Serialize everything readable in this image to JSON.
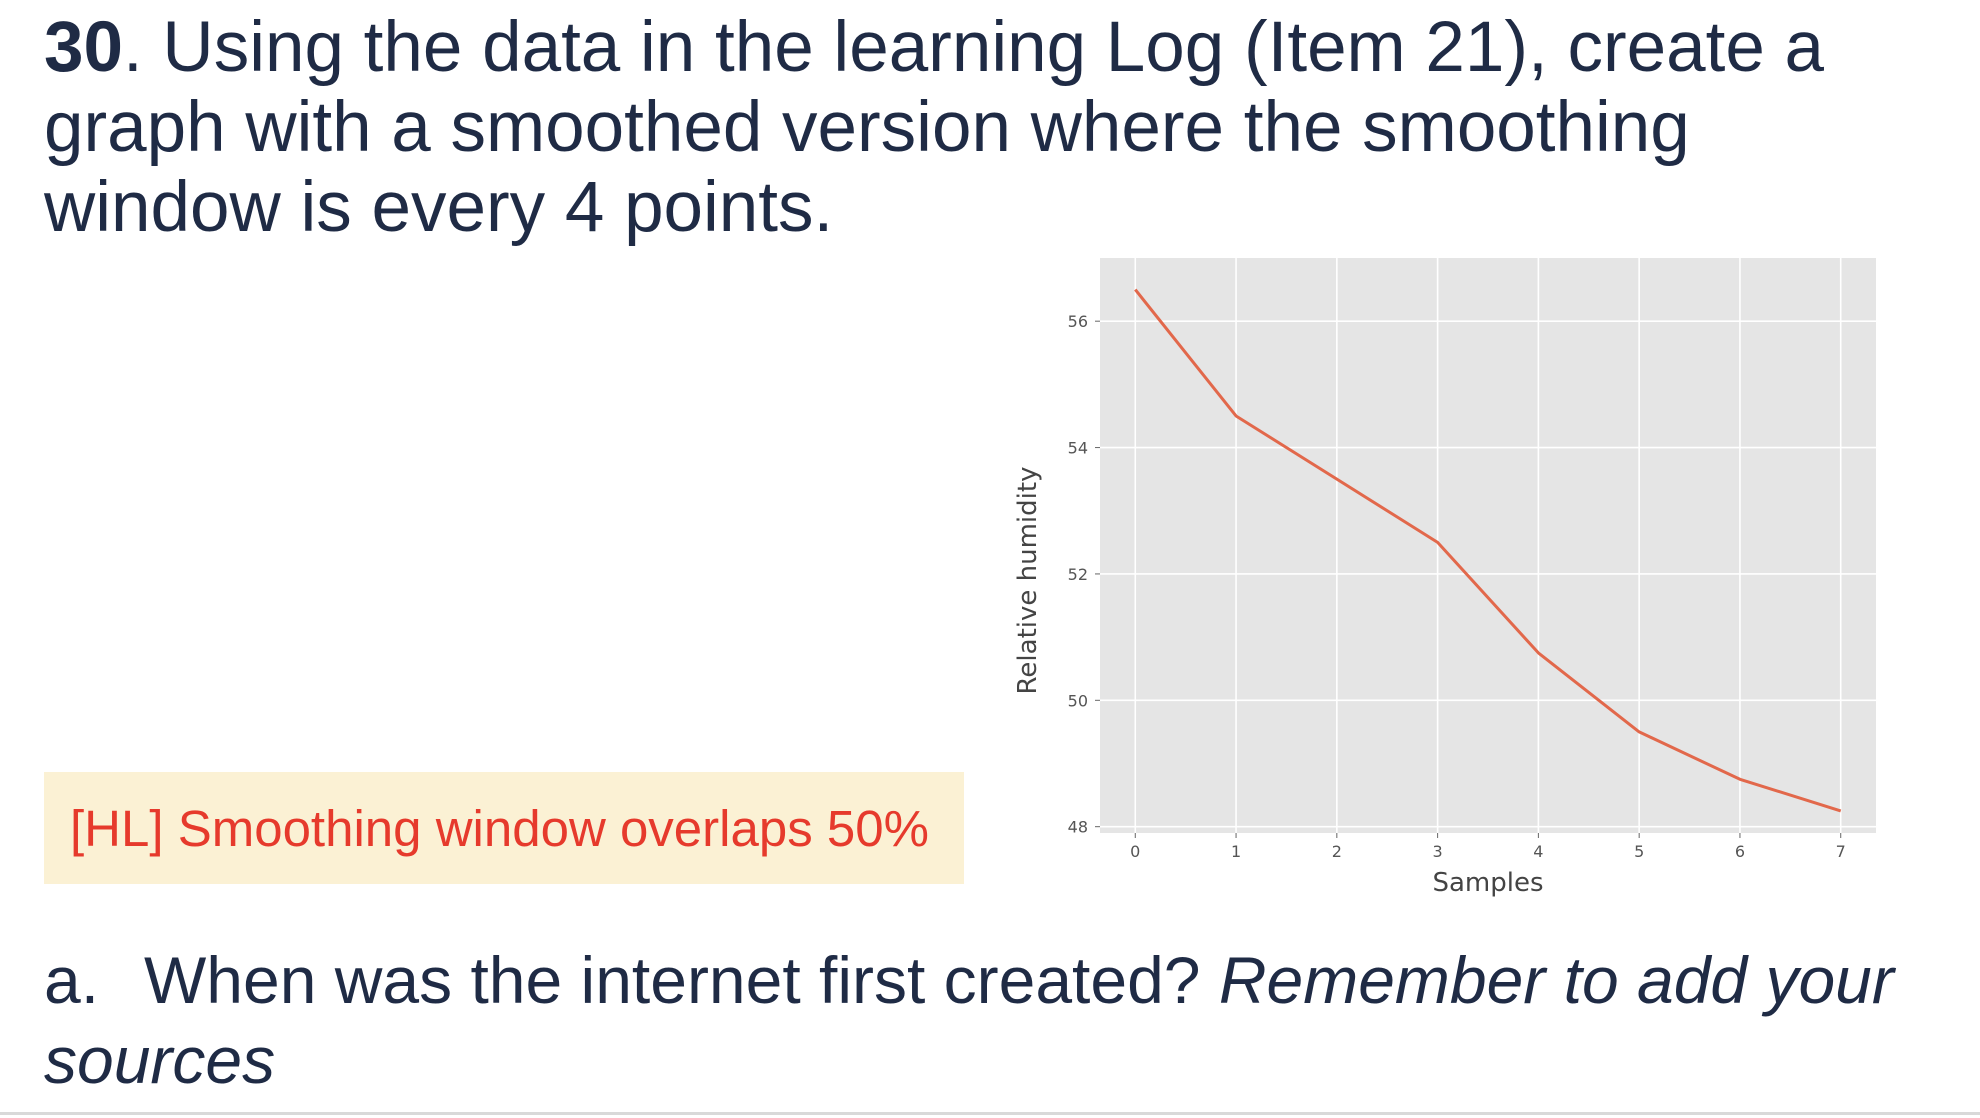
{
  "question": {
    "number": "30",
    "text": ". Using the data in the learning Log (Item 21), create a graph with a smoothed version where the smoothing window is every 4 points."
  },
  "note": {
    "text": "[HL] Smoothing window overlaps 50%"
  },
  "chart_data": {
    "type": "line",
    "x": [
      0,
      1,
      2,
      3,
      4,
      5,
      6,
      7
    ],
    "series": [
      {
        "values": [
          56.5,
          54.5,
          53.5,
          52.5,
          50.75,
          49.5,
          48.75,
          48.25
        ],
        "color": "#e2684b"
      }
    ],
    "xlabel": "Samples",
    "ylabel": "Relative humidity",
    "xticks": [
      "0",
      "1",
      "2",
      "3",
      "4",
      "5",
      "6",
      "7"
    ],
    "yticks": [
      "48",
      "50",
      "52",
      "54",
      "56"
    ],
    "xlim": [
      -0.35,
      7.35
    ],
    "ylim": [
      47.9,
      57.0
    ],
    "grid": true,
    "background": "#e5e5e5"
  },
  "subquestion": {
    "marker": "a.",
    "text": "When was the internet first created?",
    "emphasis": "Remember to add your sources"
  }
}
